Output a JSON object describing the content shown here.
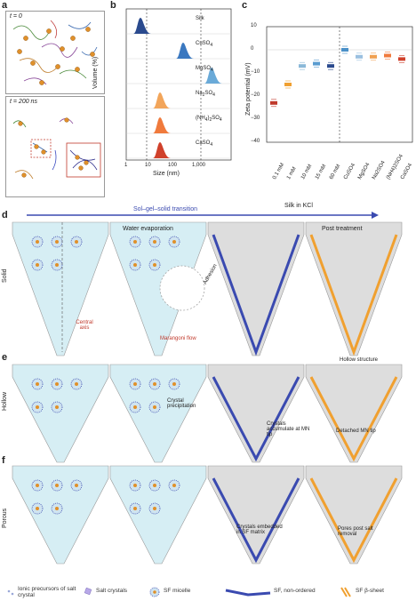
{
  "panel_a": {
    "label": "a",
    "top_caption": "t = 0",
    "bottom_caption": "t = 200 ns"
  },
  "panel_b": {
    "label": "b",
    "ylabel": "Volume (%)",
    "xlabel": "Size (nm)",
    "xticks": [
      "1",
      "10",
      "100",
      "1,000"
    ],
    "samples": [
      "Silk",
      "CuSO4",
      "MgSO4",
      "Na2SO4",
      "(NH4)2SO4",
      "CaSO4"
    ],
    "sample_labels_html": [
      "Silk",
      "CuSO<sub>4</sub>",
      "MgSO<sub>4</sub>",
      "Na<sub>2</sub>SO<sub>4</sub>",
      "(NH<sub>4</sub>)<sub>2</sub>SO<sub>4</sub>",
      "CaSO<sub>4</sub>"
    ],
    "colors": [
      "#2a4a8e",
      "#3a78c0",
      "#6aaad8",
      "#f2a55a",
      "#f07a3c",
      "#d0412b"
    ]
  },
  "panel_c": {
    "label": "c",
    "ylabel": "Zeta potential (mV)",
    "xlabel": "Silk in KCl",
    "yticks": [
      "10",
      "0",
      "−10",
      "−20",
      "−30",
      "−40"
    ],
    "categories": [
      "0.1 mM",
      "1 mM",
      "10 mM",
      "15 mM",
      "60 mM",
      "CuSO4",
      "MgSO4",
      "Na2SO4",
      "(NH4)2SO4",
      "CaSO4"
    ],
    "values": [
      -23,
      -15,
      -7,
      -6,
      -7,
      0,
      -3,
      -3,
      -2.5,
      -4
    ],
    "colors": [
      "#c0392b",
      "#f0a030",
      "#8ab8d8",
      "#5a9cd0",
      "#2a4a8e",
      "#4a90c8",
      "#9ac0e0",
      "#f0a050",
      "#f07a3c",
      "#d0412b"
    ]
  },
  "panel_d": {
    "label": "d",
    "row_label": "Solid",
    "arrow_label": "Sol–gel–solid transition",
    "water_evaporation": "Water evaporation",
    "post_treatment": "Post treatment",
    "adhesion": "Adhesion",
    "central_axis": "Central axis",
    "marangoni": "Marangoni flow"
  },
  "panel_e": {
    "label": "e",
    "row_label": "Hollow",
    "crystal_precipitation": "Crystal precipitation",
    "crystals_accumulate": "Crystals accumulate at MN tip",
    "hollow_structure": "Hollow structure",
    "detached_tip": "Detached MN tip"
  },
  "panel_f": {
    "label": "f",
    "row_label": "Porous",
    "crystals_embedded": "Crystals embedded in SF matrix",
    "pores": "Pores post salt removal"
  },
  "legend": {
    "ionic": "Ionic precursors of salt crystal",
    "salt": "Salt crystals",
    "micelle": "SF micelle",
    "nonordered": "SF, non-ordered",
    "beta": "SF β-sheet"
  }
}
